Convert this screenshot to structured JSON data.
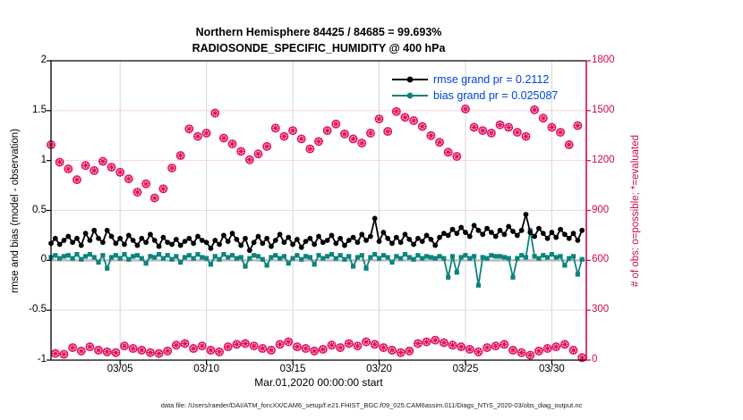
{
  "title": {
    "line1": "Northern Hemisphere 84425 / 84685 = 99.693%",
    "line2": "RADIOSONDE_SPECIFIC_HUMIDITY @ 400 hPa"
  },
  "footer": {
    "data_file_label": "data file: /Users/raeder/DAI/ATM_forcXX/CAM6_setup/f.e21.FHIST_BGC.f09_025.CAM6assim.011/Diags_NTrS_2020-03/obs_diag_output.nc"
  },
  "colors": {
    "rmse": "#000000",
    "bias": "#0e837e",
    "obs_marker": "#e0115f",
    "obs_axis": "#cb0a50",
    "legend_text": "#0044dd",
    "grid_vertical": "#d6d6d6",
    "grid_horizontal": "#f7d3e0",
    "zero_line": "#bcbcbc",
    "axis": "#000000"
  },
  "chart_data": {
    "type": "line",
    "title": "Northern Hemisphere 84425 / 84685 = 99.693% | RADIOSONDE_SPECIFIC_HUMIDITY @ 400 hPa",
    "xlabel": "Mar.01,2020 00:00:00 start",
    "x_tick_labels": [
      "03/05",
      "03/10",
      "03/15",
      "03/20",
      "03/25",
      "03/30"
    ],
    "x_tick_days": [
      5,
      10,
      15,
      20,
      25,
      30
    ],
    "x_range_days": [
      1,
      32
    ],
    "bin_hours": 6,
    "start_day": 1,
    "left_axis": {
      "label": "rmse and bias (model - observation)",
      "ticks": [
        -1,
        -0.5,
        0,
        0.5,
        1,
        1.5,
        2
      ],
      "tick_labels": [
        "-1",
        "-0.5",
        "0",
        "0.5",
        "1",
        "1.5",
        "2"
      ],
      "lim": [
        -1,
        2
      ],
      "grid": true
    },
    "right_axis": {
      "label": "# of obs: o=possible; *=evaluated",
      "ticks": [
        0,
        300,
        600,
        900,
        1200,
        1500,
        1800
      ],
      "tick_labels": [
        "0",
        "300",
        "600",
        "900",
        "1200",
        "1500",
        "1800"
      ],
      "lim": [
        0,
        1800
      ]
    },
    "legend_position": "top-right-inside, no box",
    "grand_rmse": 0.2112,
    "grand_bias": 0.025087,
    "series": [
      {
        "name": "rmse",
        "legend_label": "rmse grand pr = 0.2112",
        "axis": "left",
        "marker": "filled-circle",
        "values": [
          0.17,
          0.22,
          0.16,
          0.2,
          0.24,
          0.18,
          0.22,
          0.15,
          0.27,
          0.2,
          0.3,
          0.22,
          0.18,
          0.3,
          0.24,
          0.17,
          0.22,
          0.16,
          0.25,
          0.2,
          0.15,
          0.22,
          0.18,
          0.26,
          0.2,
          0.14,
          0.23,
          0.18,
          0.16,
          0.21,
          0.15,
          0.19,
          0.22,
          0.17,
          0.24,
          0.2,
          0.18,
          0.12,
          0.2,
          0.16,
          0.25,
          0.19,
          0.27,
          0.21,
          0.15,
          0.22,
          0.1,
          0.18,
          0.24,
          0.17,
          0.22,
          0.14,
          0.2,
          0.26,
          0.18,
          0.23,
          0.16,
          0.21,
          0.13,
          0.19,
          0.22,
          0.16,
          0.24,
          0.18,
          0.2,
          0.25,
          0.17,
          0.22,
          0.15,
          0.2,
          0.23,
          0.18,
          0.26,
          0.2,
          0.24,
          0.42,
          0.19,
          0.28,
          0.22,
          0.17,
          0.23,
          0.18,
          0.26,
          0.21,
          0.16,
          0.22,
          0.19,
          0.25,
          0.21,
          0.15,
          0.23,
          0.27,
          0.25,
          0.31,
          0.27,
          0.33,
          0.28,
          0.24,
          0.35,
          0.3,
          0.26,
          0.32,
          0.28,
          0.24,
          0.3,
          0.26,
          0.34,
          0.29,
          0.25,
          0.3,
          0.46,
          0.28,
          0.24,
          0.32,
          0.27,
          0.22,
          0.28,
          0.23,
          0.31,
          0.26,
          0.22,
          0.27,
          0.2,
          0.3
        ]
      },
      {
        "name": "bias",
        "legend_label": "bias grand pr = 0.025087",
        "axis": "left",
        "marker": "filled-square",
        "values": [
          0.03,
          0.05,
          0.02,
          0.04,
          0.05,
          0.02,
          0.06,
          0.01,
          0.04,
          0.06,
          0.03,
          -0.02,
          0.05,
          -0.08,
          0.03,
          0.05,
          0.02,
          0.06,
          0.01,
          0.04,
          0.05,
          0.02,
          -0.03,
          0.04,
          0.03,
          0.06,
          0.02,
          0.05,
          0.01,
          0.04,
          -0.02,
          0.03,
          0.05,
          0.02,
          0.06,
          0.03,
          0.02,
          -0.04,
          0.04,
          0.01,
          0.06,
          0.03,
          0.05,
          0.02,
          0.03,
          -0.06,
          0.02,
          0.05,
          0.04,
          0.01,
          -0.05,
          0.03,
          0.05,
          0.02,
          0.04,
          -0.03,
          0.02,
          0.05,
          0.01,
          0.04,
          0.03,
          -0.04,
          0.05,
          0.02,
          0.04,
          0.06,
          0.02,
          0.05,
          0.01,
          0.04,
          -0.06,
          0.03,
          0.05,
          -0.08,
          0.03,
          0.06,
          0.02,
          0.05,
          0.03,
          -0.02,
          0.04,
          0.02,
          0.06,
          0.03,
          0.01,
          0.05,
          0.02,
          0.04,
          0.03,
          0.02,
          0.04,
          0.02,
          -0.17,
          0.04,
          -0.12,
          0.03,
          0.05,
          0.02,
          0.04,
          -0.25,
          0.03,
          0.02,
          0.05,
          0.04,
          0.04,
          0.03,
          0.02,
          -0.17,
          0.02,
          0.05,
          0.03,
          0.3,
          0.04,
          0.02,
          0.05,
          0.03,
          0.06,
          0.03,
          0.04,
          -0.05,
          0.02,
          0.04,
          -0.14,
          0.01
        ]
      },
      {
        "name": "num_obs",
        "legend_label": null,
        "axis": "right",
        "marker": "circle-with-asterisk",
        "note": "o=possible and *=evaluated overlap (99.693% evaluated); high values at 00Z/12Z bins, low at 06Z/18Z bins",
        "possible": [
          1295,
          40,
          1190,
          35,
          1150,
          75,
          1085,
          55,
          1170,
          80,
          1140,
          60,
          1195,
          50,
          1160,
          45,
          1130,
          85,
          1090,
          70,
          1010,
          60,
          1060,
          45,
          975,
          40,
          1030,
          55,
          1155,
          90,
          1230,
          100,
          1390,
          70,
          1345,
          85,
          1365,
          60,
          1485,
          50,
          1335,
          80,
          1300,
          95,
          1255,
          100,
          1205,
          85,
          1240,
          70,
          1285,
          60,
          1395,
          95,
          1345,
          110,
          1380,
          80,
          1330,
          70,
          1270,
          55,
          1315,
          65,
          1380,
          90,
          1420,
          75,
          1360,
          100,
          1330,
          85,
          1305,
          110,
          1365,
          95,
          1450,
          75,
          1375,
          60,
          1495,
          45,
          1460,
          55,
          1440,
          100,
          1405,
          110,
          1350,
          120,
          1310,
          105,
          1250,
          90,
          1225,
          80,
          1510,
          65,
          1400,
          50,
          1380,
          75,
          1365,
          85,
          1415,
          95,
          1400,
          60,
          1370,
          45,
          1345,
          30,
          1505,
          55,
          1455,
          70,
          1400,
          80,
          1370,
          95,
          1295,
          60,
          1410,
          15
        ]
      }
    ]
  }
}
